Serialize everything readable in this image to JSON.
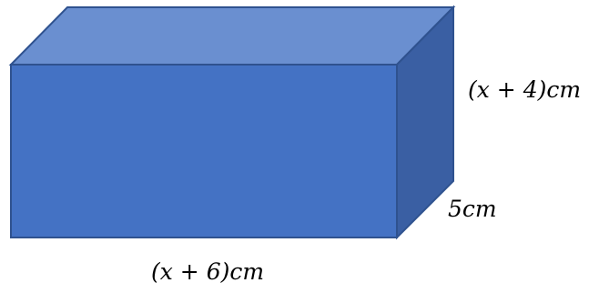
{
  "diagram": {
    "shape": "rectangular-prism",
    "labels": {
      "height": "(x + 4)cm",
      "depth": "5cm",
      "length": "(x + 6)cm"
    },
    "colors": {
      "front": "#4472c4",
      "top": "#6a8fd0",
      "side": "#3a5fa3",
      "edge": "#2f528f"
    }
  }
}
